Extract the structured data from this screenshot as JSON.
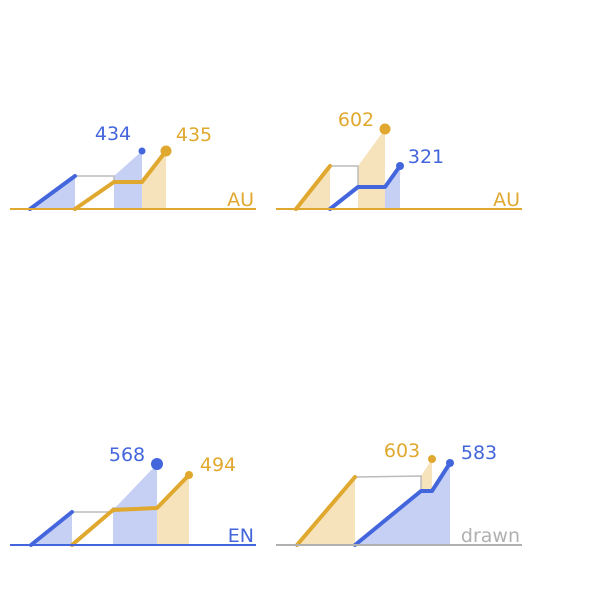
{
  "colors": {
    "blue": "#4466dd",
    "gold": "#e0a82e",
    "blue_fill": "#c5d0f4",
    "gold_fill": "#f6e3bb",
    "connector": "#bbbbbb",
    "neutral": "#b0b0b0"
  },
  "chart_data": [
    {
      "type": "area",
      "baseline_label": "AU",
      "baseline_color": "gold",
      "series": [
        {
          "color": "blue",
          "value": 434
        },
        {
          "color": "gold",
          "value": 435
        }
      ]
    },
    {
      "type": "area",
      "baseline_label": "AU",
      "baseline_color": "gold",
      "series": [
        {
          "color": "gold",
          "value": 602
        },
        {
          "color": "blue",
          "value": 321
        }
      ]
    },
    {
      "type": "area",
      "baseline_label": "EN",
      "baseline_color": "blue",
      "series": [
        {
          "color": "blue",
          "value": 568
        },
        {
          "color": "gold",
          "value": 494
        }
      ]
    },
    {
      "type": "area",
      "baseline_label": "drawn",
      "baseline_color": "neutral",
      "series": [
        {
          "color": "gold",
          "value": 603
        },
        {
          "color": "blue",
          "value": 583
        }
      ]
    }
  ]
}
